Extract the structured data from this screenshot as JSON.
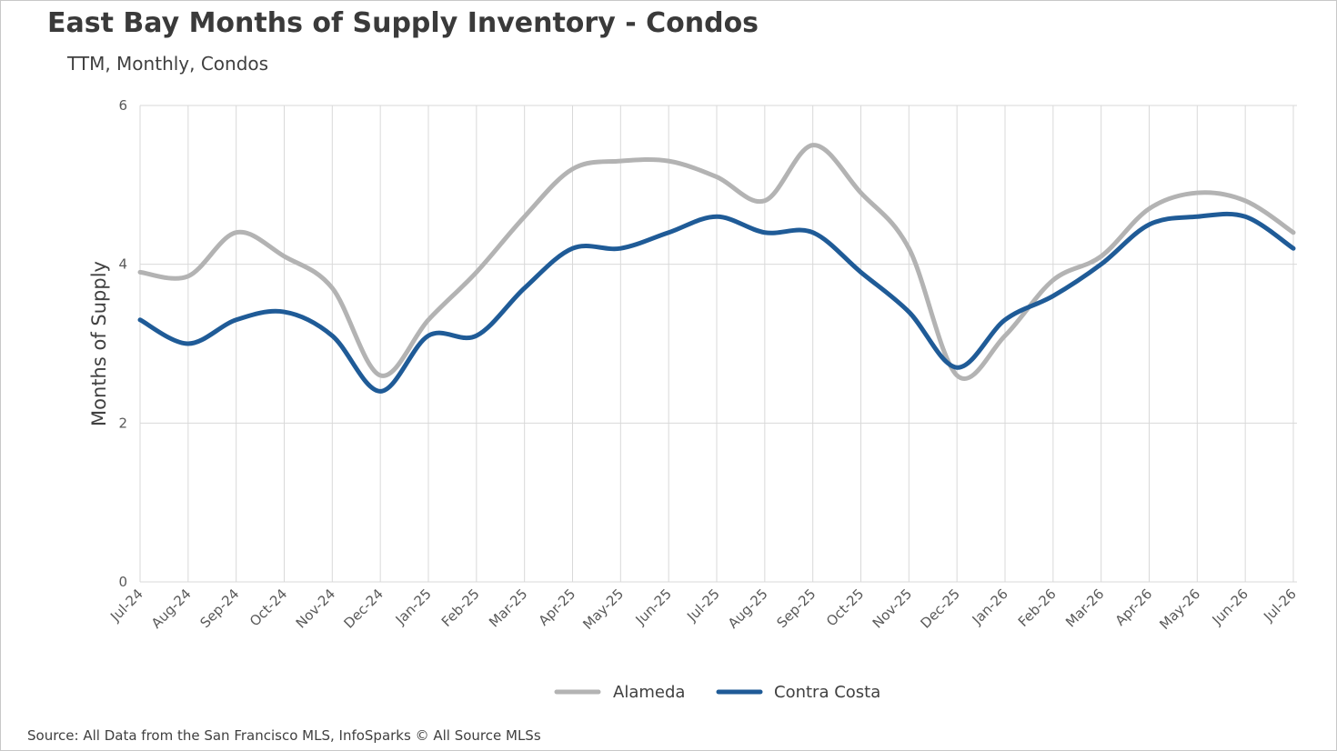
{
  "header": {
    "title": "East Bay Months of Supply Inventory - Condos",
    "subtitle": "TTM, Monthly, Condos"
  },
  "footer": {
    "source": "Source: All Data from the San Francisco MLS, InfoSparks © All Source MLSs"
  },
  "chart_data": {
    "type": "line",
    "title": "East Bay Months of Supply Inventory - Condos",
    "subtitle": "TTM, Monthly, Condos",
    "xlabel": "",
    "ylabel": "Months of Supply",
    "ylim": [
      0,
      6
    ],
    "yticks": [
      0,
      2,
      4,
      6
    ],
    "grid": true,
    "smooth": true,
    "legend_position": "bottom-center",
    "categories": [
      "Jul-24",
      "Aug-24",
      "Sep-24",
      "Oct-24",
      "Nov-24",
      "Dec-24",
      "Jan-25",
      "Feb-25",
      "Mar-25",
      "Apr-25",
      "May-25",
      "Jun-25",
      "Jul-25",
      "Aug-25",
      "Sep-25",
      "Oct-25",
      "Nov-25",
      "Dec-25",
      "Jan-26",
      "Feb-26",
      "Mar-26",
      "Apr-26",
      "May-26",
      "Jun-26",
      "Jul-26"
    ],
    "series": [
      {
        "name": "Alameda",
        "color": "#b3b3b3",
        "values": [
          3.9,
          3.85,
          4.4,
          4.1,
          3.7,
          2.6,
          3.3,
          3.9,
          4.6,
          5.2,
          5.3,
          5.3,
          5.1,
          4.8,
          5.5,
          4.9,
          4.2,
          2.6,
          3.1,
          3.8,
          4.1,
          4.7,
          4.9,
          4.8,
          4.4
        ]
      },
      {
        "name": "Contra Costa",
        "color": "#1f5b97",
        "values": [
          3.3,
          3.0,
          3.3,
          3.4,
          3.1,
          2.4,
          3.1,
          3.1,
          3.7,
          4.2,
          4.2,
          4.4,
          4.6,
          4.4,
          4.4,
          3.9,
          3.4,
          2.7,
          3.3,
          3.6,
          4.0,
          4.5,
          4.6,
          4.6,
          4.2
        ]
      }
    ]
  }
}
